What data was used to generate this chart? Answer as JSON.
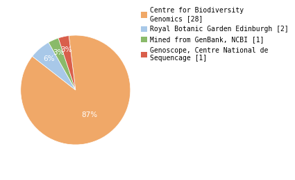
{
  "labels": [
    "Centre for Biodiversity\nGenomics [28]",
    "Royal Botanic Garden Edinburgh [2]",
    "Mined from GenBank, NCBI [1]",
    "Genoscope, Centre National de\nSequencage [1]"
  ],
  "values": [
    28,
    2,
    1,
    1
  ],
  "colors": [
    "#f0a868",
    "#a8c8e8",
    "#8aba6a",
    "#d95f4b"
  ],
  "pct_labels": [
    "87%",
    "6%",
    "3%",
    "3%"
  ],
  "background_color": "#ffffff",
  "text_color": "#ffffff",
  "legend_fontsize": 7.0,
  "pct_fontsize": 7.5,
  "startangle": 97
}
